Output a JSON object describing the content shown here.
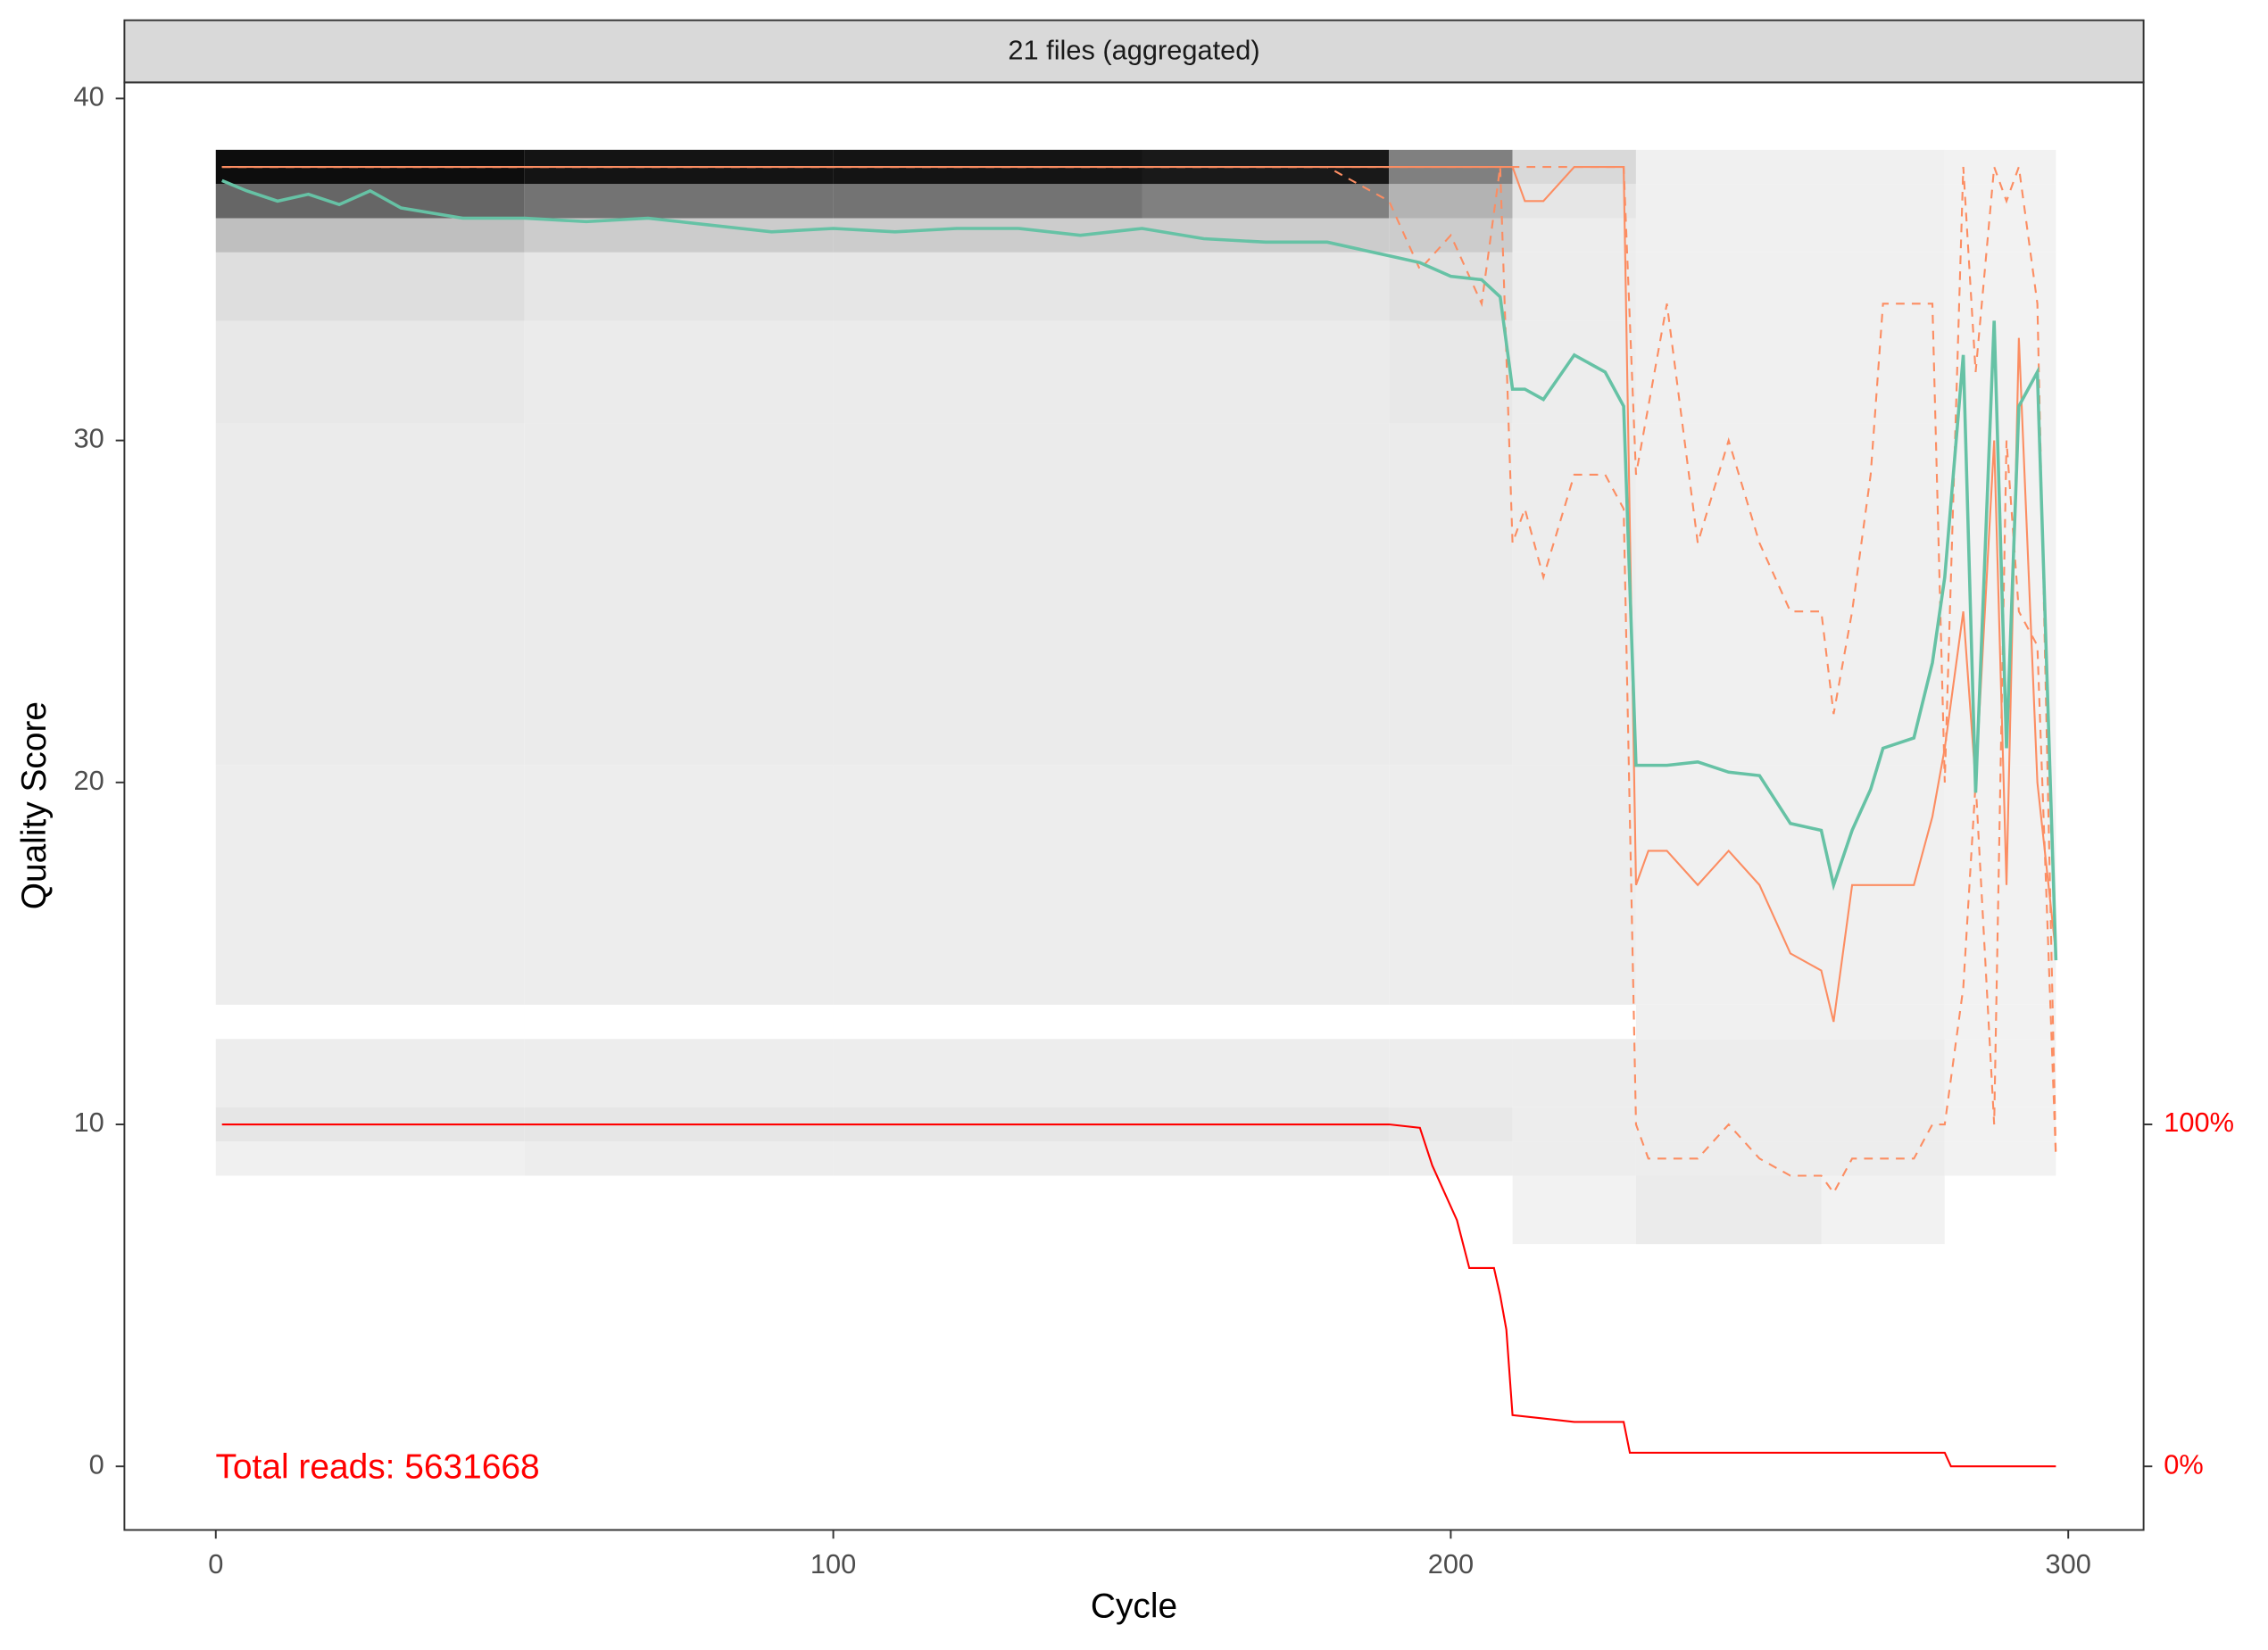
{
  "chart_data": {
    "type": "quality_profile",
    "strip_title": "21 files (aggregated)",
    "xlabel": "Cycle",
    "ylabel": "Quality Score",
    "annotation": "Total reads: 5631668",
    "annotation_color": "#ff0000",
    "xlim": [
      -14.8,
      312.2
    ],
    "ylim": [
      -1.86,
      40.47
    ],
    "y2lim": [
      -18.6,
      404.7
    ],
    "xticks": [
      0,
      100,
      200,
      300
    ],
    "yticks": [
      0,
      10,
      20,
      30,
      40
    ],
    "y2ticks": [
      {
        "value": 0,
        "label": "0%"
      },
      {
        "value": 100,
        "label": "100%"
      }
    ],
    "heatmap": {
      "x_edges": [
        0,
        50,
        100,
        150,
        190,
        210,
        230,
        260,
        280,
        298
      ],
      "y_edges": [
        6.5,
        8.5,
        9.5,
        10.5,
        12.5,
        13.5,
        20.5,
        30.5,
        33.5,
        35.5,
        36.5,
        37.5,
        38.5
      ],
      "values": [
        [
          0,
          0,
          0,
          0,
          0,
          0.05,
          0.08,
          0.05,
          0
        ],
        [
          0.06,
          0.07,
          0.07,
          0.07,
          0.07,
          0.07,
          0.07,
          0.07,
          0.05
        ],
        [
          0.1,
          0.1,
          0.1,
          0.1,
          0.09,
          0.07,
          0.07,
          0.07,
          0.05
        ],
        [
          0.07,
          0.07,
          0.07,
          0.07,
          0.07,
          0.07,
          0.07,
          0.07,
          0.05
        ],
        [
          0,
          0,
          0,
          0,
          0,
          0,
          0.06,
          0.06,
          0.05
        ],
        [
          0.07,
          0.07,
          0.07,
          0.07,
          0.07,
          0.07,
          0.06,
          0.06,
          0.05
        ],
        [
          0.08,
          0.08,
          0.08,
          0.08,
          0.08,
          0.07,
          0.06,
          0.06,
          0.05
        ],
        [
          0.09,
          0.08,
          0.08,
          0.08,
          0.09,
          0.07,
          0.06,
          0.06,
          0.05
        ],
        [
          0.13,
          0.1,
          0.1,
          0.1,
          0.12,
          0.07,
          0.06,
          0.06,
          0.05
        ],
        [
          0.25,
          0.2,
          0.2,
          0.2,
          0.2,
          0.07,
          0.06,
          0.06,
          0.05
        ],
        [
          0.6,
          0.55,
          0.55,
          0.5,
          0.3,
          0.1,
          0.06,
          0.06,
          0.05
        ],
        [
          0.95,
          0.92,
          0.92,
          0.9,
          0.5,
          0.15,
          0.06,
          0.06,
          0.05
        ]
      ]
    },
    "series": [
      {
        "color": "#fc8d62",
        "dash": true,
        "x": [
          1,
          5,
          10,
          15,
          20,
          25,
          30,
          40,
          50,
          60,
          70,
          80,
          90,
          100,
          110,
          120,
          130,
          140,
          150,
          160,
          170,
          180,
          190,
          195,
          200,
          205,
          208,
          210,
          212,
          215,
          220,
          225,
          228,
          230,
          232,
          235,
          240,
          245,
          250,
          255,
          260,
          262,
          265,
          268,
          270,
          275,
          278,
          280,
          283,
          285,
          288,
          290,
          292,
          295,
          298
        ],
        "values": [
          38,
          38,
          38,
          38,
          38,
          38,
          38,
          38,
          38,
          38,
          38,
          38,
          38,
          38,
          38,
          38,
          38,
          38,
          38,
          38,
          38,
          38,
          37,
          35,
          36,
          34,
          38,
          27,
          28,
          26,
          29,
          29,
          28,
          10,
          9,
          9,
          9,
          10,
          9,
          8.5,
          8.5,
          8,
          9,
          9,
          9,
          9,
          10,
          10,
          14,
          20,
          10,
          30,
          25,
          24,
          9
        ]
      },
      {
        "color": "#fc8d62",
        "dash": true,
        "x": [
          1,
          5,
          10,
          15,
          20,
          25,
          30,
          40,
          50,
          60,
          70,
          80,
          90,
          100,
          110,
          120,
          130,
          140,
          150,
          160,
          170,
          180,
          190,
          195,
          200,
          205,
          208,
          210,
          212,
          215,
          220,
          225,
          228,
          230,
          232,
          235,
          240,
          245,
          250,
          255,
          260,
          262,
          265,
          268,
          270,
          275,
          278,
          280,
          283,
          285,
          288,
          290,
          292,
          295,
          298
        ],
        "values": [
          38,
          38,
          38,
          38,
          38,
          38,
          38,
          38,
          38,
          38,
          38,
          38,
          38,
          38,
          38,
          38,
          38,
          38,
          38,
          38,
          38,
          38,
          38,
          38,
          38,
          38,
          38,
          38,
          38,
          38,
          38,
          38,
          38,
          29,
          31,
          34,
          27,
          30,
          27,
          25,
          25,
          22,
          25,
          29,
          34,
          34,
          34,
          20,
          38,
          32,
          38,
          37,
          38,
          34,
          9
        ]
      },
      {
        "color": "#fc8d62",
        "dash": false,
        "x": [
          1,
          5,
          10,
          15,
          20,
          25,
          30,
          40,
          50,
          60,
          70,
          80,
          90,
          100,
          110,
          120,
          130,
          140,
          150,
          160,
          170,
          180,
          190,
          195,
          200,
          205,
          208,
          210,
          212,
          215,
          220,
          225,
          228,
          230,
          232,
          235,
          240,
          245,
          250,
          255,
          260,
          262,
          265,
          268,
          270,
          275,
          278,
          280,
          283,
          285,
          288,
          290,
          292,
          295,
          298
        ],
        "values": [
          38,
          38,
          38,
          38,
          38,
          38,
          38,
          38,
          38,
          38,
          38,
          38,
          38,
          38,
          38,
          38,
          38,
          38,
          38,
          38,
          38,
          38,
          38,
          38,
          38,
          38,
          38,
          38,
          37,
          37,
          38,
          38,
          38,
          17,
          18,
          18,
          17,
          18,
          17,
          15,
          14.5,
          13,
          17,
          17,
          17,
          17,
          19,
          21,
          25,
          20,
          30,
          17,
          33,
          20,
          15
        ]
      },
      {
        "color": "#66c2a5",
        "dash": false,
        "x": [
          1,
          5,
          10,
          15,
          20,
          25,
          30,
          40,
          50,
          60,
          70,
          80,
          90,
          100,
          110,
          120,
          130,
          140,
          150,
          160,
          170,
          180,
          190,
          195,
          200,
          205,
          208,
          210,
          212,
          215,
          220,
          225,
          228,
          230,
          232,
          235,
          240,
          245,
          250,
          255,
          260,
          262,
          265,
          268,
          270,
          275,
          278,
          280,
          283,
          285,
          288,
          290,
          292,
          295,
          298
        ],
        "values": [
          37.6,
          37.3,
          37.0,
          37.2,
          36.9,
          37.3,
          36.8,
          36.5,
          36.5,
          36.4,
          36.5,
          36.3,
          36.1,
          36.2,
          36.1,
          36.2,
          36.2,
          36.0,
          36.2,
          35.9,
          35.8,
          35.8,
          35.4,
          35.2,
          34.8,
          34.7,
          34.2,
          31.5,
          31.5,
          31.2,
          32.5,
          32.0,
          31.0,
          20.5,
          20.5,
          20.5,
          20.6,
          20.3,
          20.2,
          18.8,
          18.6,
          17.0,
          18.6,
          19.8,
          21,
          21.3,
          23.5,
          26,
          32.5,
          19.7,
          33.5,
          21,
          31,
          32,
          14.8
        ]
      },
      {
        "color": "#ff0000",
        "dash": false,
        "axis": "y2",
        "x": [
          1,
          190,
          195,
          197,
          199,
          201,
          203,
          205,
          207,
          208,
          209,
          210,
          215,
          220,
          228,
          229,
          250,
          280,
          281,
          298
        ],
        "values": [
          100,
          100,
          99,
          88,
          80,
          72,
          58,
          58,
          58,
          50,
          40,
          15,
          14,
          13,
          13,
          4,
          4,
          4,
          0,
          0
        ]
      }
    ]
  }
}
